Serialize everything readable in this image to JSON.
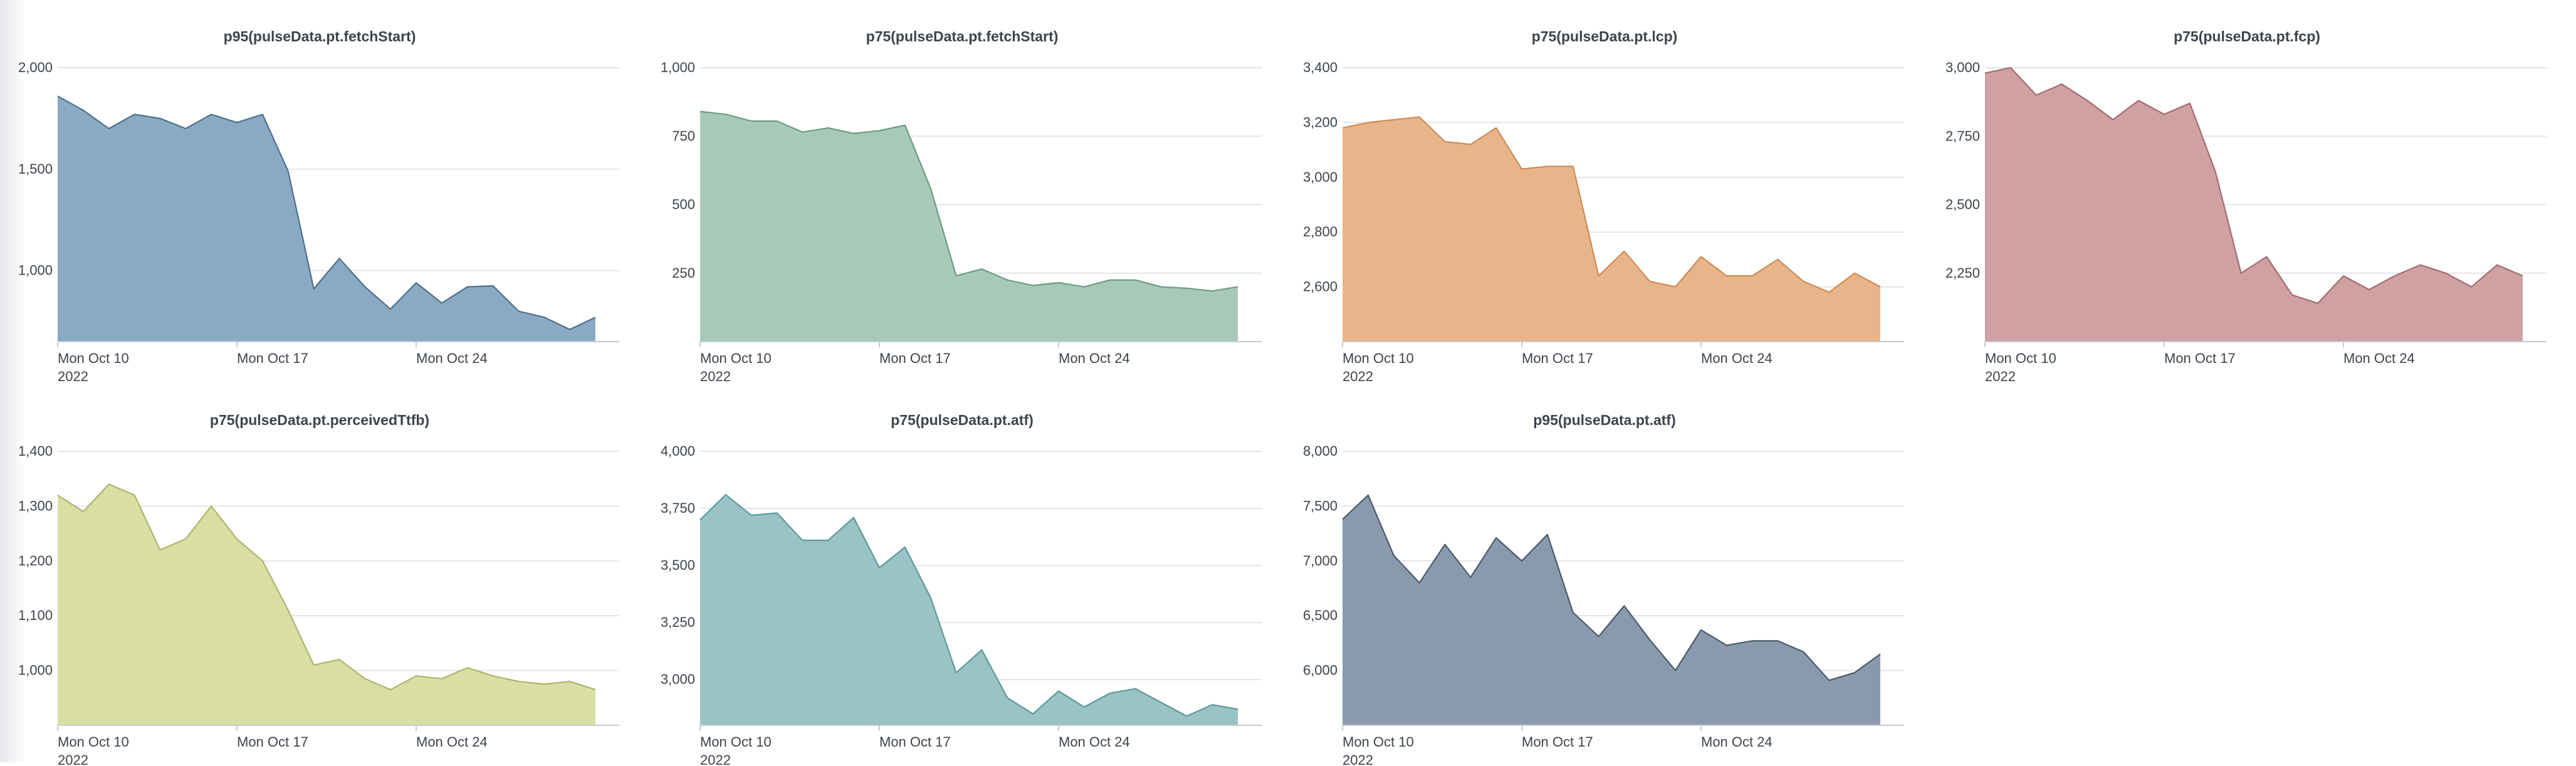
{
  "chart_data": [
    {
      "type": "area",
      "title": "p95(pulseData.pt.fetchStart)",
      "color": "#8aaac4",
      "stroke": "#4f6f8c",
      "ylim": [
        650,
        2000
      ],
      "yticks": [
        1000,
        1500,
        2000
      ],
      "ytick_labels": [
        "1,000",
        "1,500",
        "2,000"
      ],
      "xticks": [
        0,
        7,
        14
      ],
      "xtick_labels": [
        "Mon Oct 10",
        "Mon Oct 17",
        "Mon Oct 24"
      ],
      "xtick_sublabel": "2022",
      "x": [
        "2022-10-10",
        "2022-10-11",
        "2022-10-12",
        "2022-10-13",
        "2022-10-14",
        "2022-10-15",
        "2022-10-16",
        "2022-10-17",
        "2022-10-18",
        "2022-10-19",
        "2022-10-20",
        "2022-10-21",
        "2022-10-22",
        "2022-10-23",
        "2022-10-24",
        "2022-10-25",
        "2022-10-26",
        "2022-10-27",
        "2022-10-28",
        "2022-10-29",
        "2022-10-30",
        "2022-10-31"
      ],
      "values": [
        1860,
        1790,
        1700,
        1770,
        1750,
        1700,
        1770,
        1730,
        1770,
        1490,
        910,
        1060,
        920,
        810,
        940,
        840,
        920,
        925,
        800,
        770,
        710,
        770
      ]
    },
    {
      "type": "area",
      "title": "p75(pulseData.pt.fetchStart)",
      "color": "#a9c9b8",
      "stroke": "#6a9c82",
      "ylim": [
        0,
        1000
      ],
      "yticks": [
        250,
        500,
        750,
        1000
      ],
      "ytick_labels": [
        "250",
        "500",
        "750",
        "1,000"
      ],
      "xticks": [
        0,
        7,
        14
      ],
      "xtick_labels": [
        "Mon Oct 10",
        "Mon Oct 17",
        "Mon Oct 24"
      ],
      "xtick_sublabel": "2022",
      "x": [
        "2022-10-10",
        "2022-10-11",
        "2022-10-12",
        "2022-10-13",
        "2022-10-14",
        "2022-10-15",
        "2022-10-16",
        "2022-10-17",
        "2022-10-18",
        "2022-10-19",
        "2022-10-20",
        "2022-10-21",
        "2022-10-22",
        "2022-10-23",
        "2022-10-24",
        "2022-10-25",
        "2022-10-26",
        "2022-10-27",
        "2022-10-28",
        "2022-10-29",
        "2022-10-30",
        "2022-10-31"
      ],
      "values": [
        840,
        830,
        805,
        805,
        765,
        780,
        760,
        770,
        790,
        560,
        240,
        265,
        225,
        205,
        215,
        200,
        225,
        225,
        200,
        195,
        185,
        200
      ]
    },
    {
      "type": "area",
      "title": "p75(pulseData.pt.lcp)",
      "color": "#e8b58b",
      "stroke": "#d08a55",
      "ylim": [
        2400,
        3400
      ],
      "yticks": [
        2600,
        2800,
        3000,
        3200,
        3400
      ],
      "ytick_labels": [
        "2,600",
        "2,800",
        "3,000",
        "3,200",
        "3,400"
      ],
      "xticks": [
        0,
        7,
        14
      ],
      "xtick_labels": [
        "Mon Oct 10",
        "Mon Oct 17",
        "Mon Oct 24"
      ],
      "xtick_sublabel": "2022",
      "x": [
        "2022-10-10",
        "2022-10-11",
        "2022-10-12",
        "2022-10-13",
        "2022-10-14",
        "2022-10-15",
        "2022-10-16",
        "2022-10-17",
        "2022-10-18",
        "2022-10-19",
        "2022-10-20",
        "2022-10-21",
        "2022-10-22",
        "2022-10-23",
        "2022-10-24",
        "2022-10-25",
        "2022-10-26",
        "2022-10-27",
        "2022-10-28",
        "2022-10-29",
        "2022-10-30",
        "2022-10-31"
      ],
      "values": [
        3180,
        3200,
        3210,
        3220,
        3130,
        3120,
        3180,
        3030,
        3040,
        3040,
        2640,
        2730,
        2620,
        2600,
        2710,
        2640,
        2640,
        2700,
        2620,
        2580,
        2650,
        2600
      ]
    },
    {
      "type": "area",
      "title": "p75(pulseData.pt.fcp)",
      "color": "#cfa1a2",
      "stroke": "#a46c6f",
      "ylim": [
        2000,
        3000
      ],
      "yticks": [
        2250,
        2500,
        2750,
        3000
      ],
      "ytick_labels": [
        "2,250",
        "2,500",
        "2,750",
        "3,000"
      ],
      "xticks": [
        0,
        7,
        14
      ],
      "xtick_labels": [
        "Mon Oct 10",
        "Mon Oct 17",
        "Mon Oct 24"
      ],
      "xtick_sublabel": "2022",
      "x": [
        "2022-10-10",
        "2022-10-11",
        "2022-10-12",
        "2022-10-13",
        "2022-10-14",
        "2022-10-15",
        "2022-10-16",
        "2022-10-17",
        "2022-10-18",
        "2022-10-19",
        "2022-10-20",
        "2022-10-21",
        "2022-10-22",
        "2022-10-23",
        "2022-10-24",
        "2022-10-25",
        "2022-10-26",
        "2022-10-27",
        "2022-10-28",
        "2022-10-29",
        "2022-10-30",
        "2022-10-31"
      ],
      "values": [
        2980,
        3000,
        2900,
        2940,
        2880,
        2810,
        2880,
        2830,
        2870,
        2620,
        2250,
        2310,
        2170,
        2140,
        2240,
        2190,
        2240,
        2280,
        2250,
        2200,
        2280,
        2240
      ]
    },
    {
      "type": "area",
      "title": "p75(pulseData.pt.perceivedTtfb)",
      "color": "#d9dea4",
      "stroke": "#aeb56b",
      "ylim": [
        900,
        1400
      ],
      "yticks": [
        1000,
        1100,
        1200,
        1300,
        1400
      ],
      "ytick_labels": [
        "1,000",
        "1,100",
        "1,200",
        "1,300",
        "1,400"
      ],
      "xticks": [
        0,
        7,
        14
      ],
      "xtick_labels": [
        "Mon Oct 10",
        "Mon Oct 17",
        "Mon Oct 24"
      ],
      "xtick_sublabel": "2022",
      "x": [
        "2022-10-10",
        "2022-10-11",
        "2022-10-12",
        "2022-10-13",
        "2022-10-14",
        "2022-10-15",
        "2022-10-16",
        "2022-10-17",
        "2022-10-18",
        "2022-10-19",
        "2022-10-20",
        "2022-10-21",
        "2022-10-22",
        "2022-10-23",
        "2022-10-24",
        "2022-10-25",
        "2022-10-26",
        "2022-10-27",
        "2022-10-28",
        "2022-10-29",
        "2022-10-30",
        "2022-10-31"
      ],
      "values": [
        1320,
        1290,
        1340,
        1320,
        1220,
        1240,
        1300,
        1240,
        1200,
        1110,
        1010,
        1020,
        985,
        965,
        990,
        985,
        1005,
        990,
        980,
        975,
        980,
        965
      ]
    },
    {
      "type": "area",
      "title": "p75(pulseData.pt.atf)",
      "color": "#99c3c4",
      "stroke": "#5d9a9c",
      "ylim": [
        2800,
        4000
      ],
      "yticks": [
        3000,
        3250,
        3500,
        3750,
        4000
      ],
      "ytick_labels": [
        "3,000",
        "3,250",
        "3,500",
        "3,750",
        "4,000"
      ],
      "xticks": [
        0,
        7,
        14
      ],
      "xtick_labels": [
        "Mon Oct 10",
        "Mon Oct 17",
        "Mon Oct 24"
      ],
      "xtick_sublabel": "2022",
      "x": [
        "2022-10-10",
        "2022-10-11",
        "2022-10-12",
        "2022-10-13",
        "2022-10-14",
        "2022-10-15",
        "2022-10-16",
        "2022-10-17",
        "2022-10-18",
        "2022-10-19",
        "2022-10-20",
        "2022-10-21",
        "2022-10-22",
        "2022-10-23",
        "2022-10-24",
        "2022-10-25",
        "2022-10-26",
        "2022-10-27",
        "2022-10-28",
        "2022-10-29",
        "2022-10-30",
        "2022-10-31"
      ],
      "values": [
        3700,
        3810,
        3720,
        3730,
        3610,
        3610,
        3710,
        3490,
        3580,
        3360,
        3030,
        3130,
        2920,
        2850,
        2950,
        2880,
        2940,
        2960,
        2900,
        2840,
        2890,
        2870
      ]
    },
    {
      "type": "area",
      "title": "p95(pulseData.pt.atf)",
      "color": "#8a9aad",
      "stroke": "#4a5a6d",
      "ylim": [
        5500,
        8000
      ],
      "yticks": [
        6000,
        6500,
        7000,
        7500,
        8000
      ],
      "ytick_labels": [
        "6,000",
        "6,500",
        "7,000",
        "7,500",
        "8,000"
      ],
      "xticks": [
        0,
        7,
        14
      ],
      "xtick_labels": [
        "Mon Oct 10",
        "Mon Oct 17",
        "Mon Oct 24"
      ],
      "xtick_sublabel": "2022",
      "x": [
        "2022-10-10",
        "2022-10-11",
        "2022-10-12",
        "2022-10-13",
        "2022-10-14",
        "2022-10-15",
        "2022-10-16",
        "2022-10-17",
        "2022-10-18",
        "2022-10-19",
        "2022-10-20",
        "2022-10-21",
        "2022-10-22",
        "2022-10-23",
        "2022-10-24",
        "2022-10-25",
        "2022-10-26",
        "2022-10-27",
        "2022-10-28",
        "2022-10-29",
        "2022-10-30",
        "2022-10-31"
      ],
      "values": [
        7380,
        7600,
        7050,
        6800,
        7150,
        6850,
        7210,
        7000,
        7240,
        6530,
        6310,
        6590,
        6280,
        6000,
        6370,
        6230,
        6270,
        6270,
        6170,
        5910,
        5980,
        6150
      ]
    }
  ]
}
